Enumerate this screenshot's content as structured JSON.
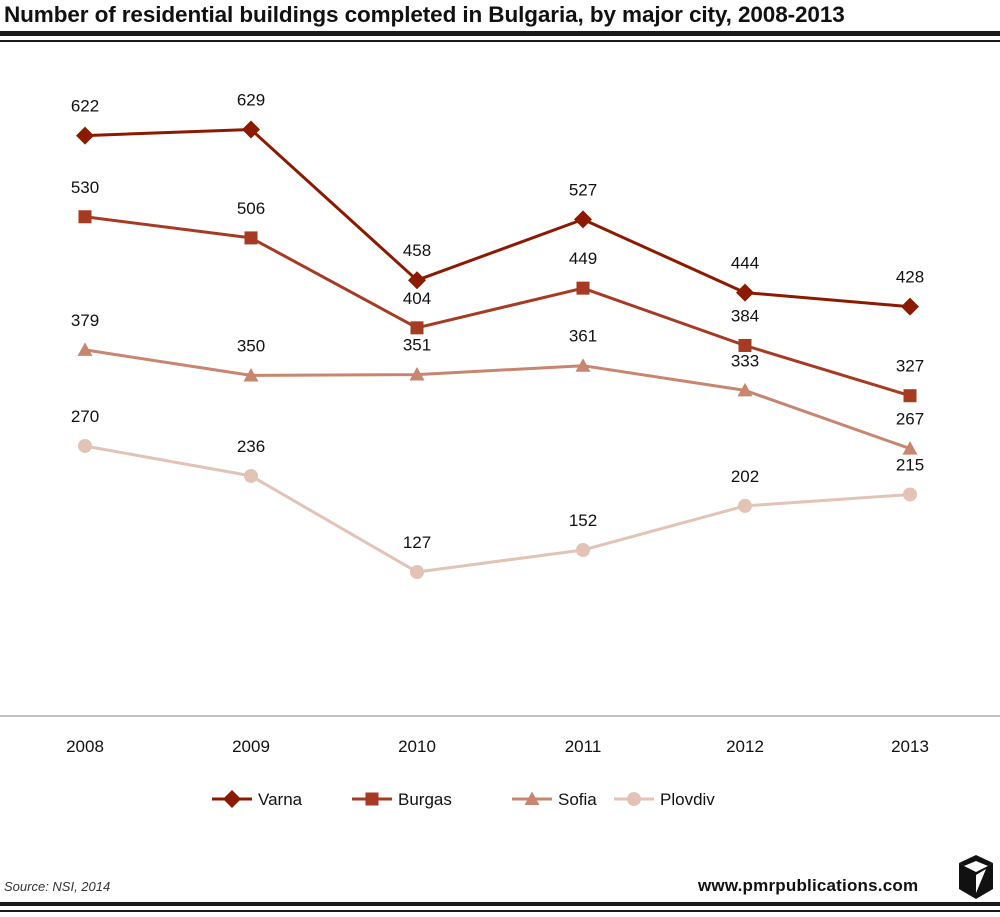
{
  "title": "Number of residential buildings completed in Bulgaria, by major city, 2008-2013",
  "source": "Source: NSI, 2014",
  "website": "www.pmrpublications.com",
  "chart_data": {
    "type": "line",
    "title": "Number of residential buildings completed in Bulgaria, by major city, 2008-2013",
    "xlabel": "",
    "ylabel": "",
    "categories": [
      "2008",
      "2009",
      "2010",
      "2011",
      "2012",
      "2013"
    ],
    "ylim": [
      0,
      700
    ],
    "grid": false,
    "legend_position": "bottom",
    "series": [
      {
        "name": "Varna",
        "values": [
          622,
          629,
          458,
          527,
          444,
          428
        ],
        "color": "#8b1a00",
        "marker": "diamond"
      },
      {
        "name": "Burgas",
        "values": [
          530,
          506,
          404,
          449,
          384,
          327
        ],
        "color": "#a63a22",
        "marker": "square"
      },
      {
        "name": "Sofia",
        "values": [
          379,
          350,
          351,
          361,
          333,
          267
        ],
        "color": "#c88670",
        "marker": "triangle"
      },
      {
        "name": "Plovdiv",
        "values": [
          270,
          236,
          127,
          152,
          202,
          215
        ],
        "color": "#e3c3b6",
        "marker": "circle"
      }
    ]
  }
}
